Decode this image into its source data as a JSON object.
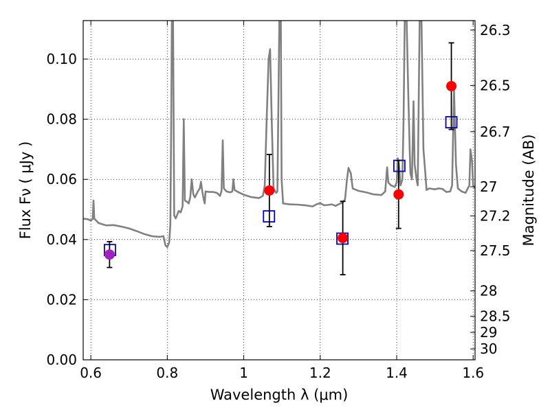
{
  "chart_data": {
    "type": "scatter",
    "title": "",
    "xlabel": "Wavelength  λ (μm)",
    "ylabel": "Flux  Fν  ( μJy )",
    "y2label": "Magnitude (AB)",
    "xlim": [
      0.58,
      1.605
    ],
    "ylim": [
      0.0,
      0.1128
    ],
    "grid": true,
    "x_ticks": [
      0.6,
      0.8,
      1.0,
      1.2,
      1.4,
      1.6
    ],
    "x_tick_labels": [
      "0.6",
      "0.8",
      "1",
      "1.2",
      "1.4",
      "1.6"
    ],
    "y_ticks": [
      0.0,
      0.02,
      0.04,
      0.06,
      0.08,
      0.1
    ],
    "y_tick_labels": [
      "0.00",
      "0.02",
      "0.04",
      "0.06",
      "0.08",
      "0.10"
    ],
    "y2_ticks": [
      26.3,
      26.5,
      26.7,
      27,
      27.2,
      27.5,
      28,
      28.5,
      29,
      30
    ],
    "y2_tick_labels": [
      "26.3",
      "26.5",
      "26.7",
      "27",
      "27.2",
      "27.5",
      "28",
      "28.5",
      "29",
      "30"
    ],
    "series": [
      {
        "kind": "spectrum",
        "color": "#808080",
        "points": [
          [
            0.58,
            0.0469
          ],
          [
            0.59,
            0.0468
          ],
          [
            0.6,
            0.0463
          ],
          [
            0.605,
            0.0468
          ],
          [
            0.607,
            0.053
          ],
          [
            0.609,
            0.047
          ],
          [
            0.62,
            0.0455
          ],
          [
            0.64,
            0.0447
          ],
          [
            0.66,
            0.0448
          ],
          [
            0.68,
            0.0443
          ],
          [
            0.7,
            0.0437
          ],
          [
            0.72,
            0.0428
          ],
          [
            0.74,
            0.0418
          ],
          [
            0.76,
            0.0411
          ],
          [
            0.78,
            0.0409
          ],
          [
            0.79,
            0.0411
          ],
          [
            0.795,
            0.0381
          ],
          [
            0.8,
            0.0375
          ],
          [
            0.805,
            0.039
          ],
          [
            0.808,
            0.045
          ],
          [
            0.81,
            0.075
          ],
          [
            0.812,
            0.1128
          ],
          [
            0.815,
            0.1128
          ],
          [
            0.818,
            0.048
          ],
          [
            0.822,
            0.047
          ],
          [
            0.83,
            0.0495
          ],
          [
            0.835,
            0.049
          ],
          [
            0.84,
            0.051
          ],
          [
            0.843,
            0.08
          ],
          [
            0.846,
            0.053
          ],
          [
            0.852,
            0.0525
          ],
          [
            0.856,
            0.052
          ],
          [
            0.86,
            0.054
          ],
          [
            0.864,
            0.06
          ],
          [
            0.868,
            0.055
          ],
          [
            0.872,
            0.054
          ],
          [
            0.88,
            0.056
          ],
          [
            0.885,
            0.057
          ],
          [
            0.888,
            0.0592
          ],
          [
            0.891,
            0.0565
          ],
          [
            0.895,
            0.0535
          ],
          [
            0.898,
            0.052
          ],
          [
            0.9,
            0.056
          ],
          [
            0.91,
            0.0558
          ],
          [
            0.92,
            0.0558
          ],
          [
            0.93,
            0.0555
          ],
          [
            0.938,
            0.0545
          ],
          [
            0.942,
            0.0563
          ],
          [
            0.945,
            0.073
          ],
          [
            0.948,
            0.057
          ],
          [
            0.955,
            0.056
          ],
          [
            0.965,
            0.0557
          ],
          [
            0.97,
            0.056
          ],
          [
            0.973,
            0.06
          ],
          [
            0.976,
            0.0565
          ],
          [
            0.985,
            0.0558
          ],
          [
            1.0,
            0.0549
          ],
          [
            1.02,
            0.0541
          ],
          [
            1.04,
            0.0538
          ],
          [
            1.05,
            0.0545
          ],
          [
            1.055,
            0.058
          ],
          [
            1.06,
            0.08
          ],
          [
            1.065,
            0.1
          ],
          [
            1.069,
            0.1033
          ],
          [
            1.073,
            0.08
          ],
          [
            1.078,
            0.057
          ],
          [
            1.085,
            0.0555
          ],
          [
            1.088,
            0.056
          ],
          [
            1.091,
            0.09
          ],
          [
            1.093,
            0.1128
          ],
          [
            1.097,
            0.1128
          ],
          [
            1.099,
            0.06
          ],
          [
            1.103,
            0.052
          ],
          [
            1.12,
            0.0517
          ],
          [
            1.14,
            0.0516
          ],
          [
            1.16,
            0.0514
          ],
          [
            1.18,
            0.051
          ],
          [
            1.19,
            0.0517
          ],
          [
            1.2,
            0.0521
          ],
          [
            1.21,
            0.0514
          ],
          [
            1.22,
            0.0515
          ],
          [
            1.23,
            0.0517
          ],
          [
            1.24,
            0.0512
          ],
          [
            1.25,
            0.0518
          ],
          [
            1.26,
            0.0525
          ],
          [
            1.265,
            0.0534
          ],
          [
            1.27,
            0.06
          ],
          [
            1.274,
            0.0638
          ],
          [
            1.28,
            0.062
          ],
          [
            1.285,
            0.057
          ],
          [
            1.3,
            0.0562
          ],
          [
            1.32,
            0.0557
          ],
          [
            1.34,
            0.055
          ],
          [
            1.36,
            0.0548
          ],
          [
            1.37,
            0.056
          ],
          [
            1.375,
            0.064
          ],
          [
            1.378,
            0.059
          ],
          [
            1.385,
            0.058
          ],
          [
            1.395,
            0.0575
          ],
          [
            1.4,
            0.059
          ],
          [
            1.403,
            0.067
          ],
          [
            1.406,
            0.065
          ],
          [
            1.41,
            0.058
          ],
          [
            1.415,
            0.06
          ],
          [
            1.418,
            0.08
          ],
          [
            1.421,
            0.1128
          ],
          [
            1.426,
            0.1128
          ],
          [
            1.43,
            0.09
          ],
          [
            1.434,
            0.07
          ],
          [
            1.436,
            0.062
          ],
          [
            1.44,
            0.06
          ],
          [
            1.444,
            0.086
          ],
          [
            1.447,
            0.065
          ],
          [
            1.452,
            0.06
          ],
          [
            1.455,
            0.058
          ],
          [
            1.46,
            0.1128
          ],
          [
            1.465,
            0.1128
          ],
          [
            1.47,
            0.07
          ],
          [
            1.475,
            0.062
          ],
          [
            1.478,
            0.0565
          ],
          [
            1.485,
            0.057
          ],
          [
            1.5,
            0.0567
          ],
          [
            1.51,
            0.057
          ],
          [
            1.52,
            0.0568
          ],
          [
            1.53,
            0.0558
          ],
          [
            1.54,
            0.056
          ],
          [
            1.545,
            0.058
          ],
          [
            1.55,
            0.09
          ],
          [
            1.555,
            0.065
          ],
          [
            1.56,
            0.057
          ],
          [
            1.57,
            0.056
          ],
          [
            1.58,
            0.0555
          ],
          [
            1.59,
            0.058
          ],
          [
            1.593,
            0.07
          ],
          [
            1.597,
            0.066
          ],
          [
            1.6,
            0.058
          ],
          [
            1.605,
            0.057
          ]
        ]
      },
      {
        "kind": "observed",
        "marker": "filled-circle",
        "color": "#ff0000",
        "points": [
          {
            "x": 1.067,
            "y": 0.0563,
            "err_low": 0.012,
            "err_high": 0.012
          },
          {
            "x": 1.259,
            "y": 0.0405,
            "err_low": 0.0122,
            "err_high": 0.0122
          },
          {
            "x": 1.405,
            "y": 0.055,
            "err_low": 0.0113,
            "err_high": 0.0113
          },
          {
            "x": 1.543,
            "y": 0.091,
            "err_low": 0.0144,
            "err_high": 0.0144
          }
        ]
      },
      {
        "kind": "observed",
        "marker": "filled-circle",
        "color": "#a020c0",
        "points": [
          {
            "x": 0.649,
            "y": 0.035,
            "err_low": 0.0043,
            "err_high": 0.0043
          }
        ]
      },
      {
        "kind": "model-photometry",
        "marker": "open-square",
        "color": "#0000cc",
        "points": [
          {
            "x": 0.65,
            "y": 0.0365
          },
          {
            "x": 1.066,
            "y": 0.0477
          },
          {
            "x": 1.258,
            "y": 0.0403
          },
          {
            "x": 1.407,
            "y": 0.0645
          },
          {
            "x": 1.543,
            "y": 0.079
          }
        ]
      }
    ]
  }
}
